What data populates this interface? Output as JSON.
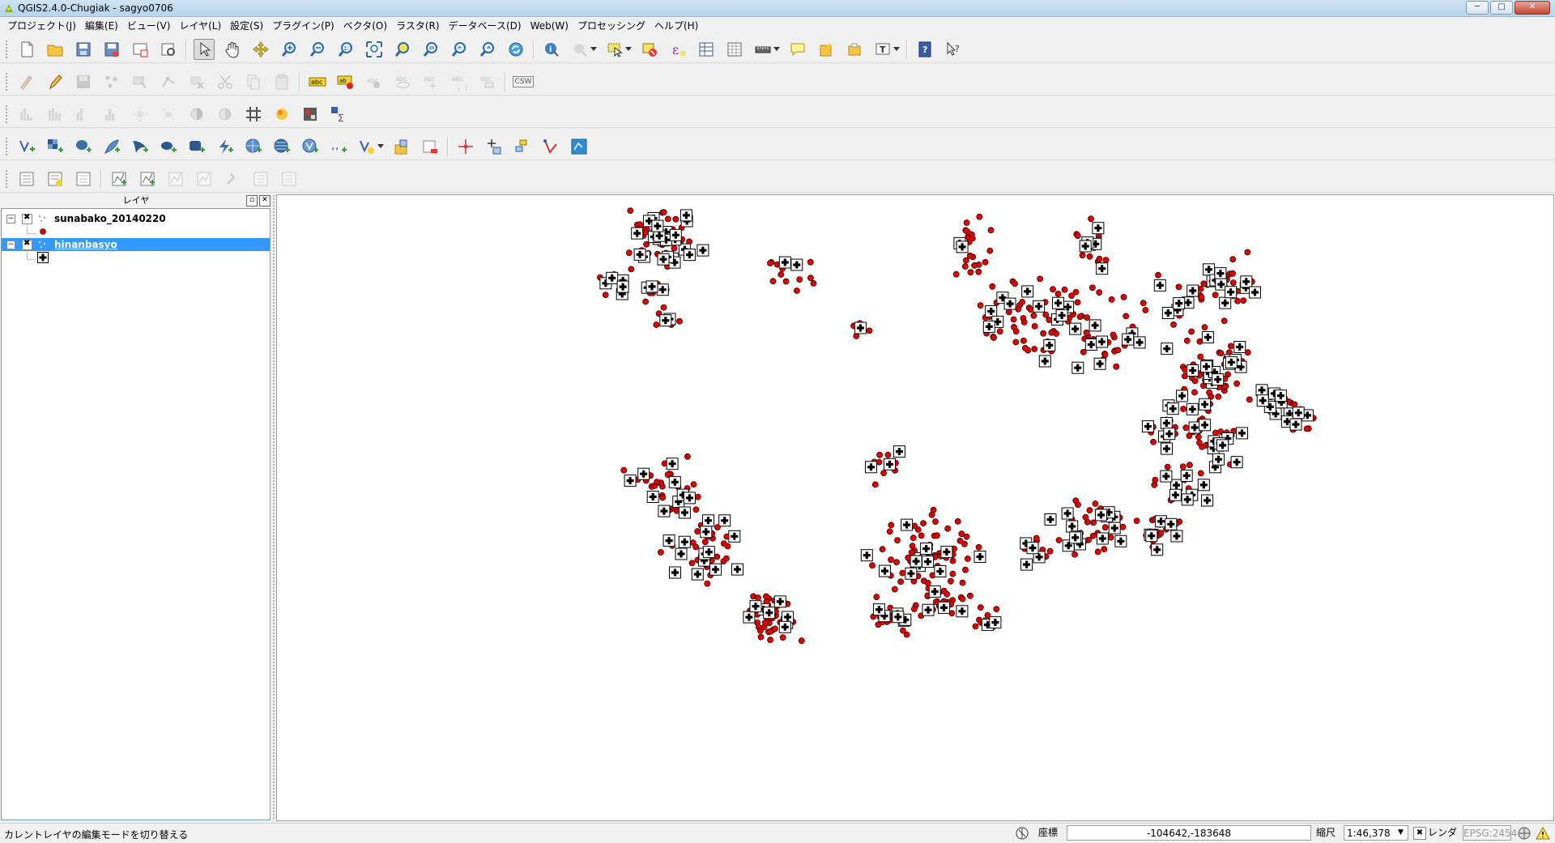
{
  "window": {
    "title": "QGIS2.4.0-Chugiak - sagyo0706",
    "minimize": "─",
    "maximize": "□",
    "close": "✕"
  },
  "menu": [
    "プロジェクト(J)",
    "編集(E)",
    "ビュー(V)",
    "レイヤ(L)",
    "設定(S)",
    "プラグイン(P)",
    "ベクタ(O)",
    "ラスタ(R)",
    "データベース(D)",
    "Web(W)",
    "プロセッシング",
    "ヘルプ(H)"
  ],
  "toolbars": {
    "label_csw": "CSW"
  },
  "layers_panel": {
    "title": "レイヤ",
    "float_button": "▫",
    "close_button": "✕",
    "layers": [
      {
        "name": "sunabako_20140220",
        "visible": true,
        "selected": false,
        "symbol": "red-circle",
        "color": "#e00000"
      },
      {
        "name": "hinanbasyo",
        "visible": true,
        "selected": true,
        "symbol": "black-cross-square",
        "color": "#000000"
      }
    ]
  },
  "map": {
    "background": "#ffffff",
    "point_color": "#e00000",
    "marker_color": "#000000"
  },
  "statusbar": {
    "message": "カレントレイヤの編集モードを切り替える",
    "coord_label": "座標",
    "coordinate": "-104642,-183648",
    "scale_label": "縮尺",
    "scale": "1:46,378",
    "render_label": "レンダ",
    "crs": "EPSG:2454"
  }
}
